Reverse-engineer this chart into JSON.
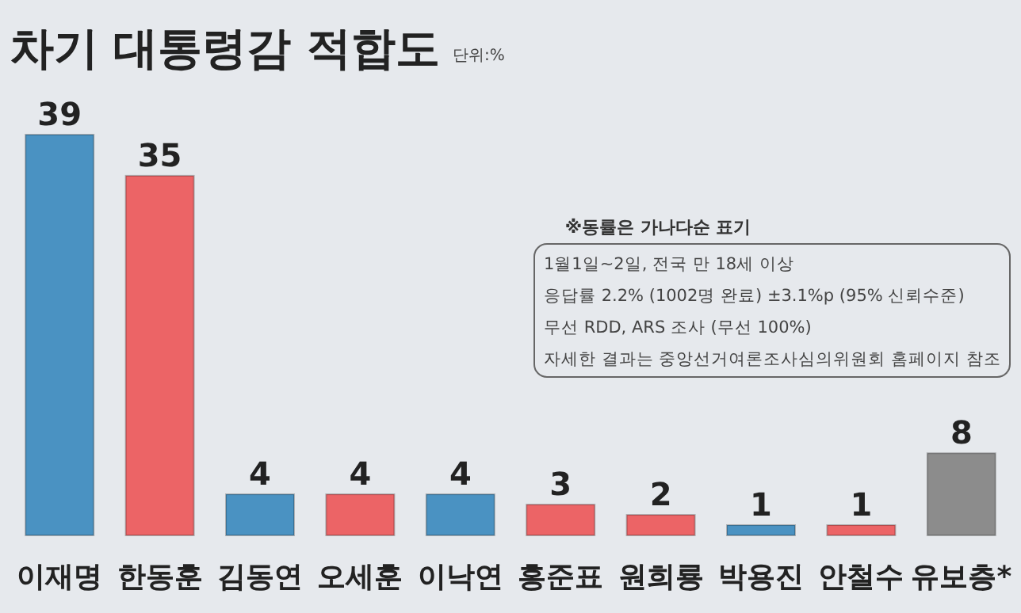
{
  "chart_data": {
    "type": "bar",
    "title": "차기 대통령감 적합도",
    "subtitle": "단위:%",
    "categories": [
      "이재명",
      "한동훈",
      "김동연",
      "오세훈",
      "이낙연",
      "홍준표",
      "원희룡",
      "박용진",
      "안철수",
      "유보층*"
    ],
    "values": [
      39,
      35,
      4,
      4,
      4,
      3,
      2,
      1,
      1,
      8
    ],
    "colors": [
      "#4a92c2",
      "#ec6466",
      "#4a92c2",
      "#ec6466",
      "#4a92c2",
      "#ec6466",
      "#ec6466",
      "#4a92c2",
      "#ec6466",
      "#8c8c8c"
    ],
    "data_labels": true,
    "annotations": [
      "※동률은 가나다순 표기",
      "1월1일~2일, 전국 만 18세 이상",
      "응답률 2.2% (1002명 완료) ±3.1%p (95% 신뢰수준)",
      "무선 RDD, ARS 조사 (무선 100%)",
      "자세한 결과는 중앙선거여론조사심의위원회 홈페이지 참조"
    ]
  }
}
